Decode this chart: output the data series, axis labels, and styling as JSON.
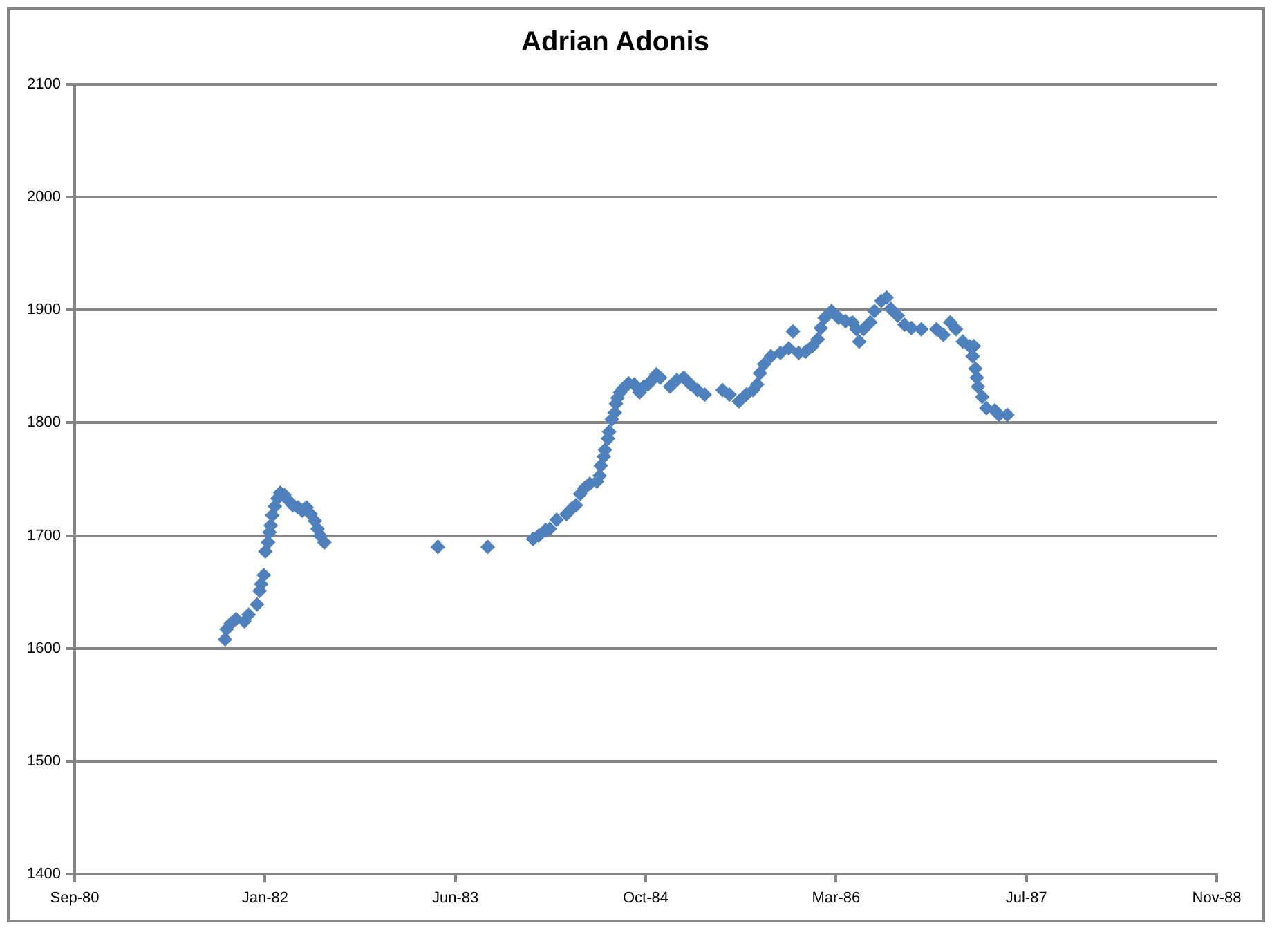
{
  "chart_data": {
    "type": "scatter",
    "title": "Adrian Adonis",
    "color": "#4f81bd",
    "marker": "diamond",
    "grid": "y",
    "x": [
      "1981-10-11",
      "1981-10-15",
      "1981-10-26",
      "1981-11-09",
      "1981-12-01",
      "1981-12-12",
      "1982-01-03",
      "1982-01-10",
      "1982-01-14",
      "1982-01-21",
      "1982-01-25",
      "1982-02-01",
      "1982-02-05",
      "1982-02-08",
      "1982-02-12",
      "1982-02-19",
      "1982-02-26",
      "1982-03-05",
      "1982-03-16",
      "1982-03-27",
      "1982-04-07",
      "1982-04-21",
      "1982-05-02",
      "1982-05-13",
      "1982-05-24",
      "1982-06-04",
      "1982-06-11",
      "1982-06-18",
      "1982-06-29",
      "1983-04-23",
      "1983-09-01",
      "1983-12-29",
      "1984-01-13",
      "1984-01-31",
      "1984-02-11",
      "1984-02-29",
      "1984-03-26",
      "1984-04-09",
      "1984-04-20",
      "1984-05-01",
      "1984-05-12",
      "1984-05-26",
      "1984-06-14",
      "1984-06-21",
      "1984-06-24",
      "1984-07-02",
      "1984-07-05",
      "1984-07-13",
      "1984-07-16",
      "1984-07-23",
      "1984-07-31",
      "1984-08-03",
      "1984-08-07",
      "1984-08-14",
      "1984-08-21",
      "1984-09-05",
      "1984-09-20",
      "1984-10-04",
      "1984-10-15",
      "1984-10-26",
      "1984-11-06",
      "1984-11-17",
      "1984-11-27",
      "1984-12-23",
      "1985-01-10",
      "1985-01-28",
      "1985-02-15",
      "1985-03-05",
      "1985-03-24",
      "1985-05-10",
      "1985-05-28",
      "1985-06-22",
      "1985-07-11",
      "1985-07-29",
      "1985-08-09",
      "1985-08-16",
      "1985-08-27",
      "1985-09-14",
      "1985-10-09",
      "1985-10-31",
      "1985-11-11",
      "1985-11-26",
      "1985-12-14",
      "1986-01-01",
      "1986-01-15",
      "1986-01-23",
      "1986-02-02",
      "1986-02-20",
      "1986-03-11",
      "1986-03-29",
      "1986-04-16",
      "1986-04-27",
      "1986-05-04",
      "1986-05-15",
      "1986-06-02",
      "1986-06-13",
      "1986-07-01",
      "1986-07-15",
      "1986-07-26",
      "1986-08-13",
      "1986-08-31",
      "1986-09-18",
      "1986-10-14",
      "1986-11-23",
      "1986-12-11",
      "1986-12-29",
      "1987-01-13",
      "1987-01-31",
      "1987-02-18",
      "1987-02-26",
      "1987-03-01",
      "1987-03-05",
      "1987-03-09",
      "1987-03-12",
      "1987-03-23",
      "1987-04-03",
      "1987-04-25",
      "1987-05-06",
      "1987-05-28"
    ],
    "values": [
      1608,
      1617,
      1622,
      1626,
      1624,
      1630,
      1639,
      1651,
      1657,
      1665,
      1686,
      1694,
      1703,
      1709,
      1718,
      1726,
      1733,
      1738,
      1736,
      1731,
      1727,
      1725,
      1722,
      1725,
      1719,
      1713,
      1706,
      1700,
      1694,
      1690,
      1690,
      1697,
      1700,
      1705,
      1706,
      1714,
      1719,
      1724,
      1727,
      1737,
      1742,
      1746,
      1748,
      1753,
      1762,
      1770,
      1776,
      1786,
      1792,
      1803,
      1809,
      1817,
      1822,
      1827,
      1830,
      1835,
      1834,
      1827,
      1832,
      1834,
      1838,
      1843,
      1840,
      1832,
      1838,
      1840,
      1834,
      1829,
      1825,
      1829,
      1825,
      1819,
      1825,
      1829,
      1834,
      1844,
      1852,
      1859,
      1862,
      1866,
      1881,
      1862,
      1863,
      1868,
      1874,
      1884,
      1893,
      1899,
      1893,
      1890,
      1889,
      1883,
      1872,
      1883,
      1889,
      1899,
      1908,
      1911,
      1901,
      1895,
      1887,
      1884,
      1883,
      1883,
      1878,
      1889,
      1883,
      1872,
      1868,
      1859,
      1868,
      1848,
      1840,
      1832,
      1823,
      1813,
      1811,
      1807,
      1807
    ],
    "xlim": [
      "1980-09-11",
      "1988-11-28"
    ],
    "xticks": [
      {
        "value": "1980-09-11",
        "label": "Sep-80"
      },
      {
        "value": "1982-01-24",
        "label": "Jan-82"
      },
      {
        "value": "1983-06-08",
        "label": "Jun-83"
      },
      {
        "value": "1984-10-20",
        "label": "Oct-84"
      },
      {
        "value": "1986-03-04",
        "label": "Mar-86"
      },
      {
        "value": "1987-07-17",
        "label": "Jul-87"
      },
      {
        "value": "1988-11-28",
        "label": "Nov-88"
      }
    ],
    "ylim": [
      1400,
      2100
    ],
    "yticks": [
      1400,
      1500,
      1600,
      1700,
      1800,
      1900,
      2000,
      2100
    ]
  }
}
